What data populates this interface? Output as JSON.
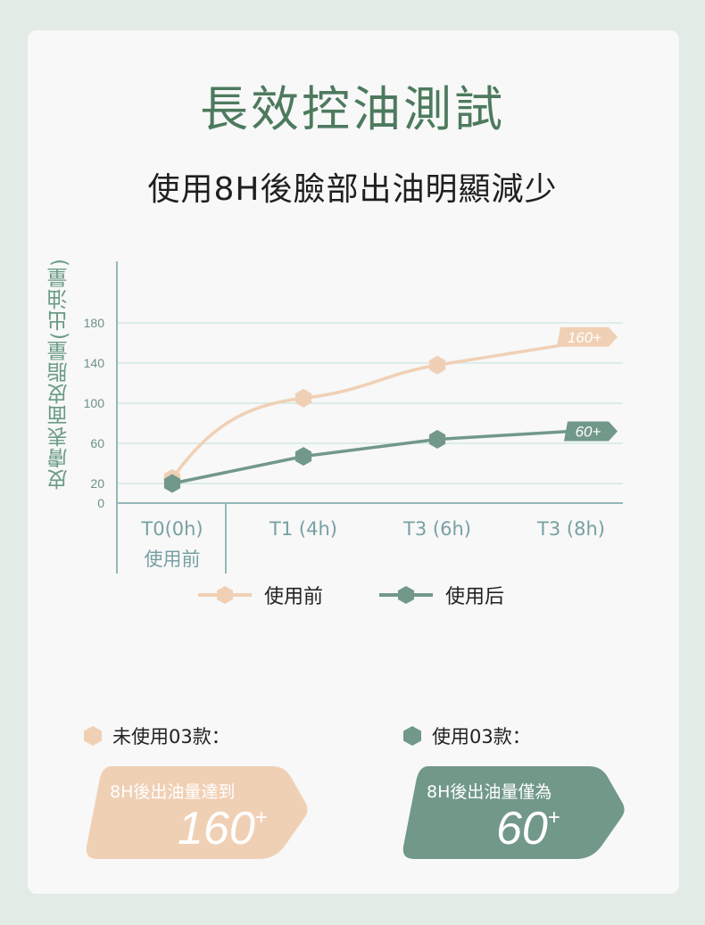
{
  "title": "長效控油測試",
  "subtitle": "使用8H後臉部出油明顯減少",
  "colors": {
    "before": "#f0d0b5",
    "after": "#72988a",
    "grid": "#d3e8e5",
    "axis": "#94b8ba",
    "title": "#4d7a5e"
  },
  "chart_data": {
    "type": "line",
    "ylabel": "皮膚表面皮脂量(出油量)",
    "y_ticks": [
      "0",
      "20",
      "60",
      "100",
      "140",
      "180"
    ],
    "categories": [
      {
        "label": "T0(0h)",
        "sublabel": "使用前"
      },
      {
        "label": "T1 (4h)",
        "sublabel": ""
      },
      {
        "label": "T3 (6h)",
        "sublabel": ""
      },
      {
        "label": "T3 (8h)",
        "sublabel": ""
      }
    ],
    "series": [
      {
        "name": "使用前",
        "values": [
          25,
          105,
          138,
          166
        ],
        "end_label": "160+",
        "color": "#f0d0b5"
      },
      {
        "name": "使用后",
        "values": [
          20,
          47,
          64,
          72
        ],
        "end_label": "60+",
        "color": "#72988a"
      }
    ]
  },
  "summary": [
    {
      "label": "未使用03款：",
      "description": "8H後出油量達到",
      "value": "160",
      "suffix": "+"
    },
    {
      "label": "使用03款：",
      "description": "8H後出油量僅為",
      "value": "60",
      "suffix": "+"
    }
  ]
}
